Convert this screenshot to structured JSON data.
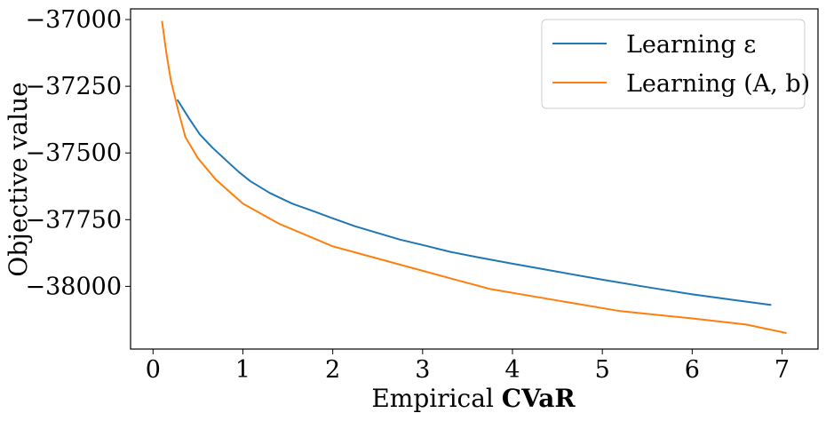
{
  "chart_data": {
    "type": "line",
    "xlabel": "Empirical CVaR",
    "xlabel_plain": "Empirical ",
    "xlabel_bold": "CVaR",
    "ylabel": "Objective value",
    "xlim": [
      -0.25,
      7.4
    ],
    "ylim": [
      -38235,
      -36960
    ],
    "xticks": [
      0,
      1,
      2,
      3,
      4,
      5,
      6,
      7
    ],
    "xtick_labels": [
      "0",
      "1",
      "2",
      "3",
      "4",
      "5",
      "6",
      "7"
    ],
    "yticks": [
      -37000,
      -37250,
      -37500,
      -37750,
      -38000
    ],
    "ytick_labels": [
      "−37000",
      "−37250",
      "−37500",
      "−37750",
      "−38000"
    ],
    "grid": false,
    "legend_position": "top-right",
    "series": [
      {
        "name": "Learning ε",
        "color": "#1f77b4",
        "points": [
          [
            0.27,
            -37300
          ],
          [
            0.4,
            -37370
          ],
          [
            0.52,
            -37430
          ],
          [
            0.66,
            -37480
          ],
          [
            0.82,
            -37530
          ],
          [
            0.95,
            -37570
          ],
          [
            1.08,
            -37605
          ],
          [
            1.3,
            -37650
          ],
          [
            1.55,
            -37690
          ],
          [
            1.8,
            -37720
          ],
          [
            2.0,
            -37745
          ],
          [
            2.25,
            -37775
          ],
          [
            2.5,
            -37800
          ],
          [
            2.75,
            -37825
          ],
          [
            3.0,
            -37845
          ],
          [
            3.3,
            -37870
          ],
          [
            3.6,
            -37890
          ],
          [
            4.0,
            -37915
          ],
          [
            4.5,
            -37945
          ],
          [
            5.0,
            -37975
          ],
          [
            5.5,
            -38003
          ],
          [
            6.0,
            -38030
          ],
          [
            6.5,
            -38053
          ],
          [
            6.88,
            -38070
          ]
        ]
      },
      {
        "name": "Learning (A, b)",
        "color": "#ff7f0e",
        "points": [
          [
            0.1,
            -37005
          ],
          [
            0.15,
            -37130
          ],
          [
            0.2,
            -37230
          ],
          [
            0.28,
            -37340
          ],
          [
            0.36,
            -37440
          ],
          [
            0.5,
            -37520
          ],
          [
            0.7,
            -37600
          ],
          [
            1.0,
            -37690
          ],
          [
            1.4,
            -37765
          ],
          [
            2.0,
            -37850
          ],
          [
            2.6,
            -37905
          ],
          [
            3.2,
            -37960
          ],
          [
            3.75,
            -38010
          ],
          [
            4.5,
            -38053
          ],
          [
            5.2,
            -38093
          ],
          [
            6.0,
            -38120
          ],
          [
            6.6,
            -38143
          ],
          [
            7.05,
            -38175
          ]
        ]
      }
    ]
  }
}
